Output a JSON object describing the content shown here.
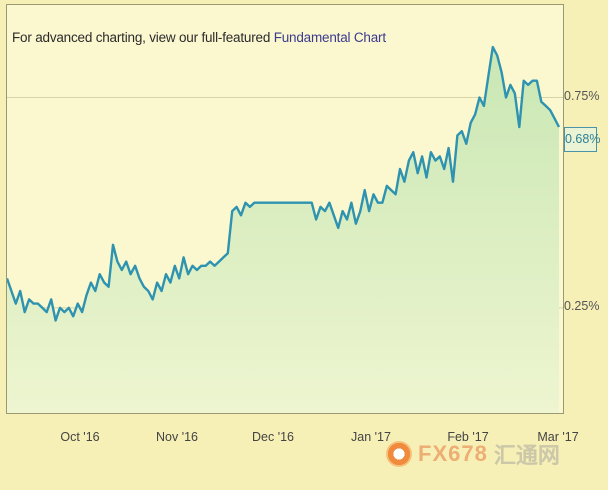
{
  "header": {
    "prefix": "For advanced charting, view our full-featured",
    "link": "Fundamental Chart"
  },
  "watermark": {
    "text": "FX678",
    "cn": "汇通网"
  },
  "colors": {
    "line": "#2e93b0",
    "fill_top": "#c9e7b4",
    "fill_bottom": "#eef5d0",
    "badge_border": "#4a93a8"
  },
  "chart_data": {
    "type": "area",
    "x_tick_labels": [
      "Oct '16",
      "Nov '16",
      "Dec '16",
      "Jan '17",
      "Feb '17",
      "Mar '17"
    ],
    "y_tick_labels": [
      "0.75%",
      "0.25%"
    ],
    "y_ticks": [
      0.75,
      0.25
    ],
    "ylim": [
      0.0,
      0.97
    ],
    "last_value_label": "0.68%",
    "last_value": 0.68,
    "grid": false,
    "series": [
      {
        "values": [
          0.32,
          0.29,
          0.26,
          0.29,
          0.24,
          0.27,
          0.26,
          0.26,
          0.25,
          0.24,
          0.27,
          0.22,
          0.25,
          0.24,
          0.25,
          0.23,
          0.26,
          0.24,
          0.28,
          0.31,
          0.29,
          0.33,
          0.31,
          0.3,
          0.4,
          0.36,
          0.34,
          0.36,
          0.33,
          0.35,
          0.32,
          0.3,
          0.29,
          0.27,
          0.31,
          0.29,
          0.33,
          0.31,
          0.35,
          0.32,
          0.37,
          0.33,
          0.35,
          0.34,
          0.35,
          0.35,
          0.36,
          0.35,
          0.36,
          0.37,
          0.38,
          0.48,
          0.49,
          0.47,
          0.5,
          0.49,
          0.5,
          0.5,
          0.5,
          0.5,
          0.5,
          0.5,
          0.5,
          0.5,
          0.5,
          0.5,
          0.5,
          0.5,
          0.5,
          0.5,
          0.46,
          0.49,
          0.48,
          0.5,
          0.47,
          0.44,
          0.48,
          0.46,
          0.5,
          0.45,
          0.48,
          0.53,
          0.48,
          0.52,
          0.5,
          0.5,
          0.54,
          0.53,
          0.52,
          0.58,
          0.55,
          0.6,
          0.62,
          0.57,
          0.61,
          0.56,
          0.62,
          0.6,
          0.61,
          0.58,
          0.63,
          0.55,
          0.66,
          0.67,
          0.64,
          0.69,
          0.71,
          0.75,
          0.73,
          0.8,
          0.87,
          0.85,
          0.81,
          0.75,
          0.78,
          0.76,
          0.68,
          0.79,
          0.78,
          0.79,
          0.79,
          0.74,
          0.73,
          0.72,
          0.7,
          0.68
        ]
      }
    ]
  }
}
